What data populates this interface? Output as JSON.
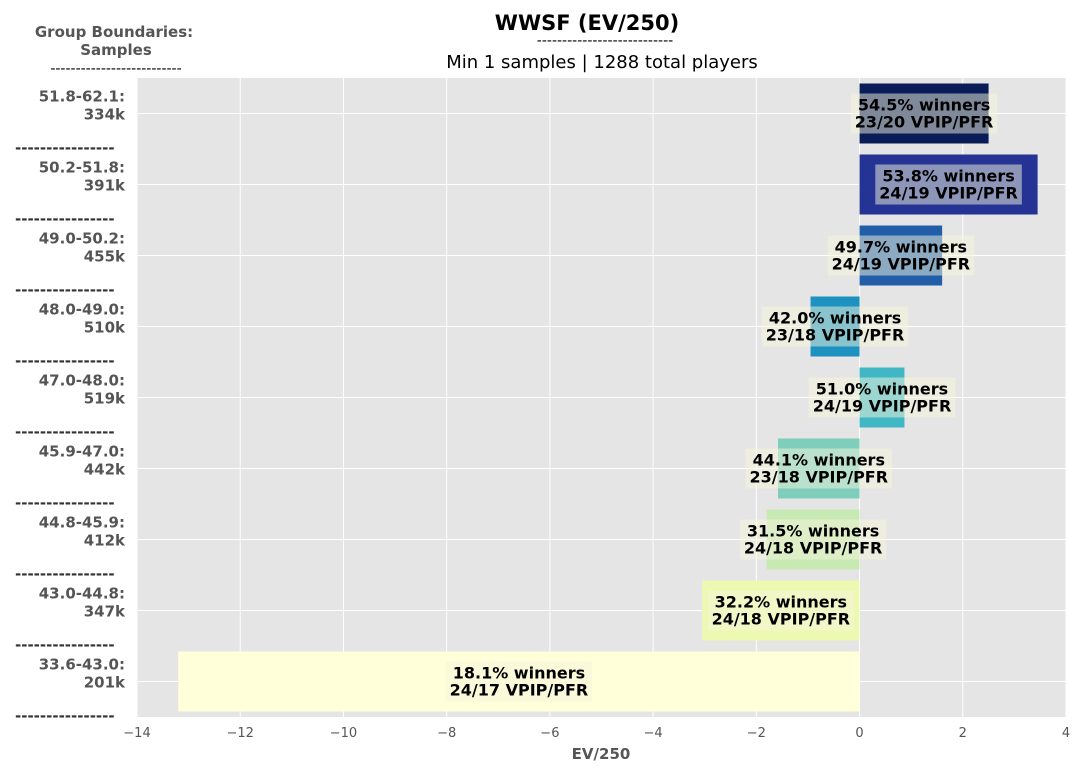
{
  "chart_data": {
    "type": "bar",
    "orientation": "horizontal",
    "title": "WWSF (EV/250)",
    "title_underline": "---------------------------",
    "subtitle": "Min 1 samples | 1288 total players",
    "y_header": [
      "Group Boundaries:",
      "Samples"
    ],
    "y_header_underline": "--------------------------",
    "xlabel": "EV/250",
    "xlim": [
      -14,
      4
    ],
    "xticks": [
      "−14",
      "−12",
      "−10",
      "−8",
      "−6",
      "−4",
      "−2",
      "0",
      "2",
      "4"
    ],
    "xtick_values": [
      -14,
      -12,
      -10,
      -8,
      -6,
      -4,
      -2,
      0,
      2,
      4
    ],
    "separator": "----------------",
    "grid": true,
    "categories": [
      {
        "range": "51.8-62.1:",
        "samples": "334k",
        "value": 2.5,
        "winners": "54.5% winners",
        "vpip_pfr": "23/20 VPIP/PFR",
        "color": "#081d58"
      },
      {
        "range": "50.2-51.8:",
        "samples": "391k",
        "value": 3.45,
        "winners": "53.8% winners",
        "vpip_pfr": "24/19 VPIP/PFR",
        "color": "#253494"
      },
      {
        "range": "49.0-50.2:",
        "samples": "455k",
        "value": 1.6,
        "winners": "49.7% winners",
        "vpip_pfr": "24/19 VPIP/PFR",
        "color": "#225ea8"
      },
      {
        "range": "48.0-49.0:",
        "samples": "510k",
        "value": -0.95,
        "winners": "42.0% winners",
        "vpip_pfr": "23/18 VPIP/PFR",
        "color": "#1d91c0"
      },
      {
        "range": "47.0-48.0:",
        "samples": "519k",
        "value": 0.87,
        "winners": "51.0% winners",
        "vpip_pfr": "24/19 VPIP/PFR",
        "color": "#41b6c4"
      },
      {
        "range": "45.9-47.0:",
        "samples": "442k",
        "value": -1.58,
        "winners": "44.1% winners",
        "vpip_pfr": "23/18 VPIP/PFR",
        "color": "#7fcdbb"
      },
      {
        "range": "44.8-45.9:",
        "samples": "412k",
        "value": -1.8,
        "winners": "31.5% winners",
        "vpip_pfr": "24/18 VPIP/PFR",
        "color": "#c7e9b4"
      },
      {
        "range": "43.0-44.8:",
        "samples": "347k",
        "value": -3.05,
        "winners": "32.2% winners",
        "vpip_pfr": "24/18 VPIP/PFR",
        "color": "#edf8b1"
      },
      {
        "range": "33.6-43.0:",
        "samples": "201k",
        "value": -13.2,
        "winners": "18.1% winners",
        "vpip_pfr": "24/17 VPIP/PFR",
        "color": "#ffffd9"
      }
    ]
  }
}
